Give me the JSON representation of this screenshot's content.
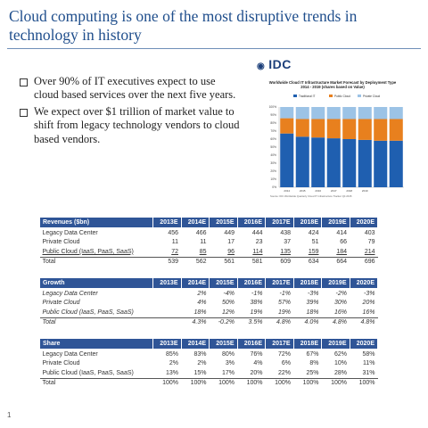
{
  "slide": {
    "title": "Cloud computing is one of the most disruptive trends in technology in history",
    "bullets": [
      "Over 90% of IT executives expect to use cloud based services over the next five years.",
      "We expect over $1 trillion of market value to shift from legacy technology vendors to cloud based vendors."
    ],
    "page_number": "1"
  },
  "idc": {
    "logo": "IDC",
    "colors": {
      "traditional": "#1f5fb0",
      "public": "#e8801e",
      "private": "#9cc3e6"
    }
  },
  "chart_data": {
    "type": "bar",
    "title": "Worldwide Cloud IT Infrastructure Market Forecast by Deployment Type 2014 - 2019 (shares based on Value)",
    "stacked": true,
    "categories": [
      "2014",
      "2015",
      "2016",
      "2017",
      "2018",
      "2019",
      "",
      ""
    ],
    "series": [
      {
        "name": "Traditional IT",
        "values": [
          67,
          63,
          62,
          61,
          60,
          59,
          58,
          58
        ]
      },
      {
        "name": "Public Cloud",
        "values": [
          19,
          22,
          23,
          24,
          25,
          26,
          27,
          27
        ]
      },
      {
        "name": "Private Cloud",
        "values": [
          14,
          15,
          15,
          15,
          15,
          15,
          15,
          15
        ]
      }
    ],
    "ylim": [
      0,
      100
    ],
    "yticks": [
      "0%",
      "10%",
      "20%",
      "30%",
      "40%",
      "50%",
      "60%",
      "70%",
      "80%",
      "90%",
      "100%"
    ],
    "legend": "top",
    "source": "Source: IDC Worldwide Quarterly Cloud IT Infrastructure Tracker Q4 2015"
  },
  "tables": {
    "revenues": {
      "headers": [
        "Revenues ($bn)",
        "2013E",
        "2014E",
        "2015E",
        "2016E",
        "2017E",
        "2018E",
        "2019E",
        "2020E"
      ],
      "rows": [
        [
          "Legacy Data Center",
          "456",
          "466",
          "449",
          "444",
          "438",
          "424",
          "414",
          "403"
        ],
        [
          "Private Cloud",
          "11",
          "11",
          "17",
          "23",
          "37",
          "51",
          "66",
          "79"
        ],
        [
          "Public Cloud (IaaS, PaaS, SaaS)",
          "72",
          "85",
          "96",
          "114",
          "135",
          "159",
          "184",
          "214"
        ],
        [
          "Total",
          "539",
          "562",
          "561",
          "581",
          "609",
          "634",
          "664",
          "696"
        ]
      ]
    },
    "growth": {
      "headers": [
        "Growth",
        "2013E",
        "2014E",
        "2015E",
        "2016E",
        "2017E",
        "2018E",
        "2019E",
        "2020E"
      ],
      "rows": [
        [
          "Legacy Data Center",
          "",
          "2%",
          "-4%",
          "-1%",
          "-1%",
          "-3%",
          "-2%",
          "-3%"
        ],
        [
          "Private Cloud",
          "",
          "4%",
          "50%",
          "38%",
          "57%",
          "39%",
          "30%",
          "20%"
        ],
        [
          "Public Cloud (IaaS, PaaS, SaaS)",
          "",
          "18%",
          "12%",
          "19%",
          "19%",
          "18%",
          "16%",
          "16%"
        ],
        [
          "Total",
          "",
          "4.3%",
          "-0.2%",
          "3.5%",
          "4.8%",
          "4.0%",
          "4.8%",
          "4.8%"
        ]
      ]
    },
    "share": {
      "headers": [
        "Share",
        "2013E",
        "2014E",
        "2015E",
        "2016E",
        "2017E",
        "2018E",
        "2019E",
        "2020E"
      ],
      "rows": [
        [
          "Legacy Data Center",
          "85%",
          "83%",
          "80%",
          "76%",
          "72%",
          "67%",
          "62%",
          "58%"
        ],
        [
          "Private Cloud",
          "2%",
          "2%",
          "3%",
          "4%",
          "6%",
          "8%",
          "10%",
          "11%"
        ],
        [
          "Public Cloud (IaaS, PaaS, SaaS)",
          "13%",
          "15%",
          "17%",
          "20%",
          "22%",
          "25%",
          "28%",
          "31%"
        ],
        [
          "Total",
          "100%",
          "100%",
          "100%",
          "100%",
          "100%",
          "100%",
          "100%",
          "100%"
        ]
      ]
    }
  }
}
